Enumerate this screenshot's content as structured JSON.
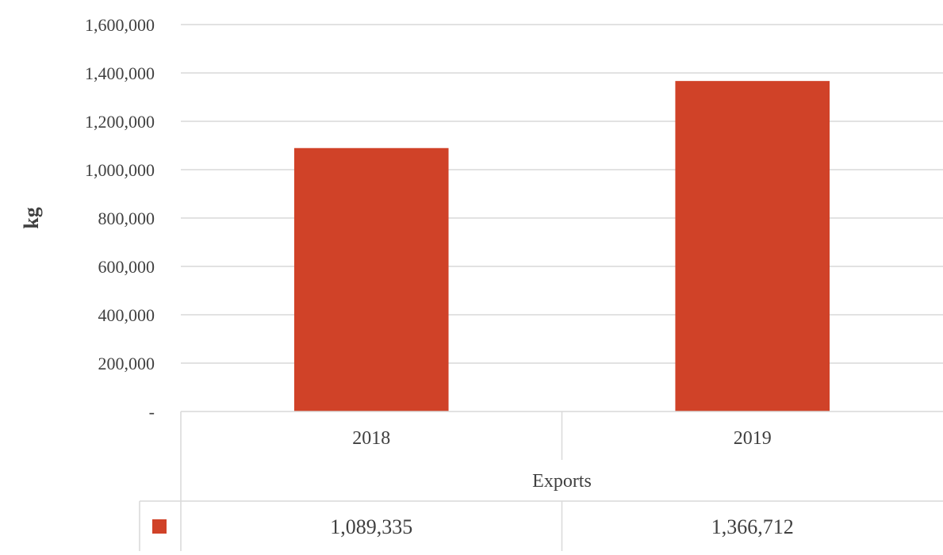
{
  "chart_data": {
    "type": "bar",
    "categories": [
      "2018",
      "2019"
    ],
    "group_label": "Exports",
    "ylabel": "kg",
    "xlabel": "",
    "ylim": [
      0,
      1600000
    ],
    "yticks": [
      0,
      200000,
      400000,
      600000,
      800000,
      1000000,
      1200000,
      1400000,
      1600000
    ],
    "ytick_labels": [
      "-",
      "200,000",
      "400,000",
      "600,000",
      "800,000",
      "1,000,000",
      "1,200,000",
      "1,400,000",
      "1,600,000"
    ],
    "series": [
      {
        "values": [
          1089335,
          1366712
        ],
        "value_labels": [
          "1,089,335",
          "1,366,712"
        ],
        "color": "#D04228"
      }
    ],
    "grid": true,
    "legend": "data-table"
  }
}
